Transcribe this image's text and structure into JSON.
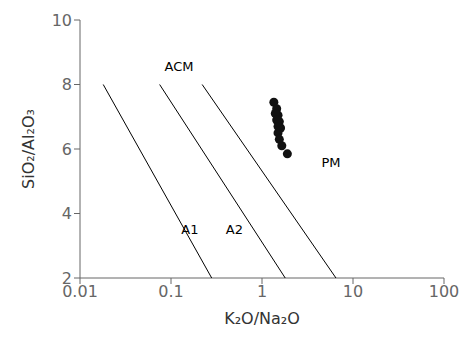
{
  "chart_data": {
    "type": "scatter",
    "title": "",
    "xlabel": "K₂O/Na₂O",
    "ylabel": "SiO₂/Al₂O₃",
    "log": "x",
    "xlim": [
      0.01,
      100
    ],
    "xticks": [
      0.01,
      0.1,
      1,
      10,
      100
    ],
    "ylim": [
      2,
      10
    ],
    "yticks": [
      2,
      4,
      6,
      8,
      10
    ],
    "grid": false,
    "x": [
      1.35,
      1.45,
      1.5,
      1.55,
      1.6,
      1.5,
      1.4,
      1.45,
      1.5,
      1.55,
      1.65,
      1.9
    ],
    "values": [
      7.45,
      7.25,
      7.05,
      6.85,
      6.65,
      6.5,
      7.1,
      6.9,
      6.7,
      6.3,
      6.1,
      5.85
    ],
    "color": "#111111",
    "marker": "circle",
    "lines": [
      {
        "x": [
          0.018,
          0.28
        ],
        "y": [
          8.0,
          2.0
        ],
        "color": "#000000"
      },
      {
        "x": [
          0.075,
          1.8
        ],
        "y": [
          8.0,
          2.0
        ],
        "color": "#000000"
      },
      {
        "x": [
          0.22,
          6.5
        ],
        "y": [
          8.0,
          2.0
        ],
        "color": "#000000"
      }
    ],
    "annotations": [
      {
        "text": "ACM",
        "x": 0.085,
        "y": 8.55
      },
      {
        "text": "A1",
        "x": 0.13,
        "y": 3.5
      },
      {
        "text": "A2",
        "x": 0.4,
        "y": 3.5
      },
      {
        "text": "PM",
        "x": 4.5,
        "y": 5.6
      }
    ]
  }
}
